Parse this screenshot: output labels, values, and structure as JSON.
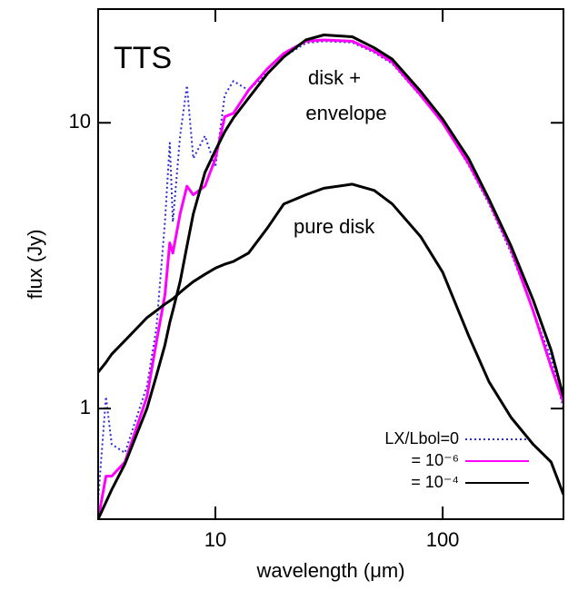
{
  "chart_data": {
    "type": "line",
    "title": "TTS",
    "x_label": "wavelength (μm)",
    "y_label": "flux (Jy)",
    "xlog": true,
    "ylog": true,
    "xlim": [
      3.05,
      340
    ],
    "ylim": [
      0.41,
      25
    ],
    "xticks": [
      10,
      100
    ],
    "yticks": [
      1,
      10
    ],
    "legend": "lower right",
    "annotations": [
      "disk +",
      "envelope"
    ],
    "x": [
      3.05,
      3.3,
      3.5,
      4,
      5,
      5.5,
      6,
      6.3,
      6.5,
      7,
      7.5,
      8,
      9,
      10,
      11,
      12,
      14,
      17,
      20,
      25,
      30,
      40,
      50,
      60,
      80,
      100,
      130,
      160,
      200,
      250,
      300,
      340
    ],
    "series": [
      {
        "name": "LX/Lbol=0",
        "color": "#2b2bd6",
        "dash": "dotted",
        "in_legend": true,
        "values": [
          0.48,
          1.1,
          0.75,
          0.7,
          1.2,
          1.9,
          4.5,
          8.5,
          4.5,
          9,
          13.5,
          7.5,
          9,
          7,
          12.5,
          14,
          13,
          15,
          17,
          19,
          19.3,
          19.1,
          17.6,
          16.1,
          12.4,
          10,
          7.1,
          5.2,
          3.5,
          2.2,
          1.5,
          1.0
        ]
      },
      {
        "name": "= 10⁻⁶",
        "color": "#ff00ff",
        "dash": "solid",
        "in_legend": true,
        "values": [
          0.41,
          0.58,
          0.58,
          0.65,
          1.1,
          1.7,
          2.5,
          3.8,
          3.5,
          4.8,
          6.0,
          5.6,
          6.0,
          7.5,
          10.5,
          10.8,
          13,
          15.5,
          17.5,
          19.3,
          19.5,
          19.3,
          17.8,
          16.3,
          12.5,
          10,
          7.2,
          5.3,
          3.6,
          2.2,
          1.4,
          1.05
        ]
      },
      {
        "name": "= 10⁻⁴",
        "color": "#000000",
        "dash": "solid",
        "in_legend": true,
        "values": [
          0.41,
          0.47,
          0.52,
          0.64,
          1.0,
          1.3,
          1.67,
          2.0,
          2.2,
          2.78,
          3.7,
          4.8,
          6.7,
          8.0,
          9.3,
          10.4,
          12.2,
          14.9,
          17.0,
          19.5,
          20.3,
          20.0,
          18.3,
          16.7,
          12.9,
          10.3,
          7.5,
          5.4,
          3.7,
          2.4,
          1.6,
          1.1
        ]
      },
      {
        "name": "pure disk",
        "color": "#000000",
        "dash": "solid",
        "in_legend": false,
        "values": [
          1.34,
          1.45,
          1.55,
          1.73,
          2.08,
          2.2,
          2.32,
          2.38,
          2.42,
          2.55,
          2.67,
          2.78,
          2.95,
          3.1,
          3.2,
          3.27,
          3.5,
          4.3,
          5.2,
          5.6,
          5.9,
          6.1,
          5.8,
          5.2,
          4.0,
          3.0,
          1.8,
          1.24,
          0.93,
          0.75,
          0.65,
          0.5
        ]
      }
    ]
  }
}
